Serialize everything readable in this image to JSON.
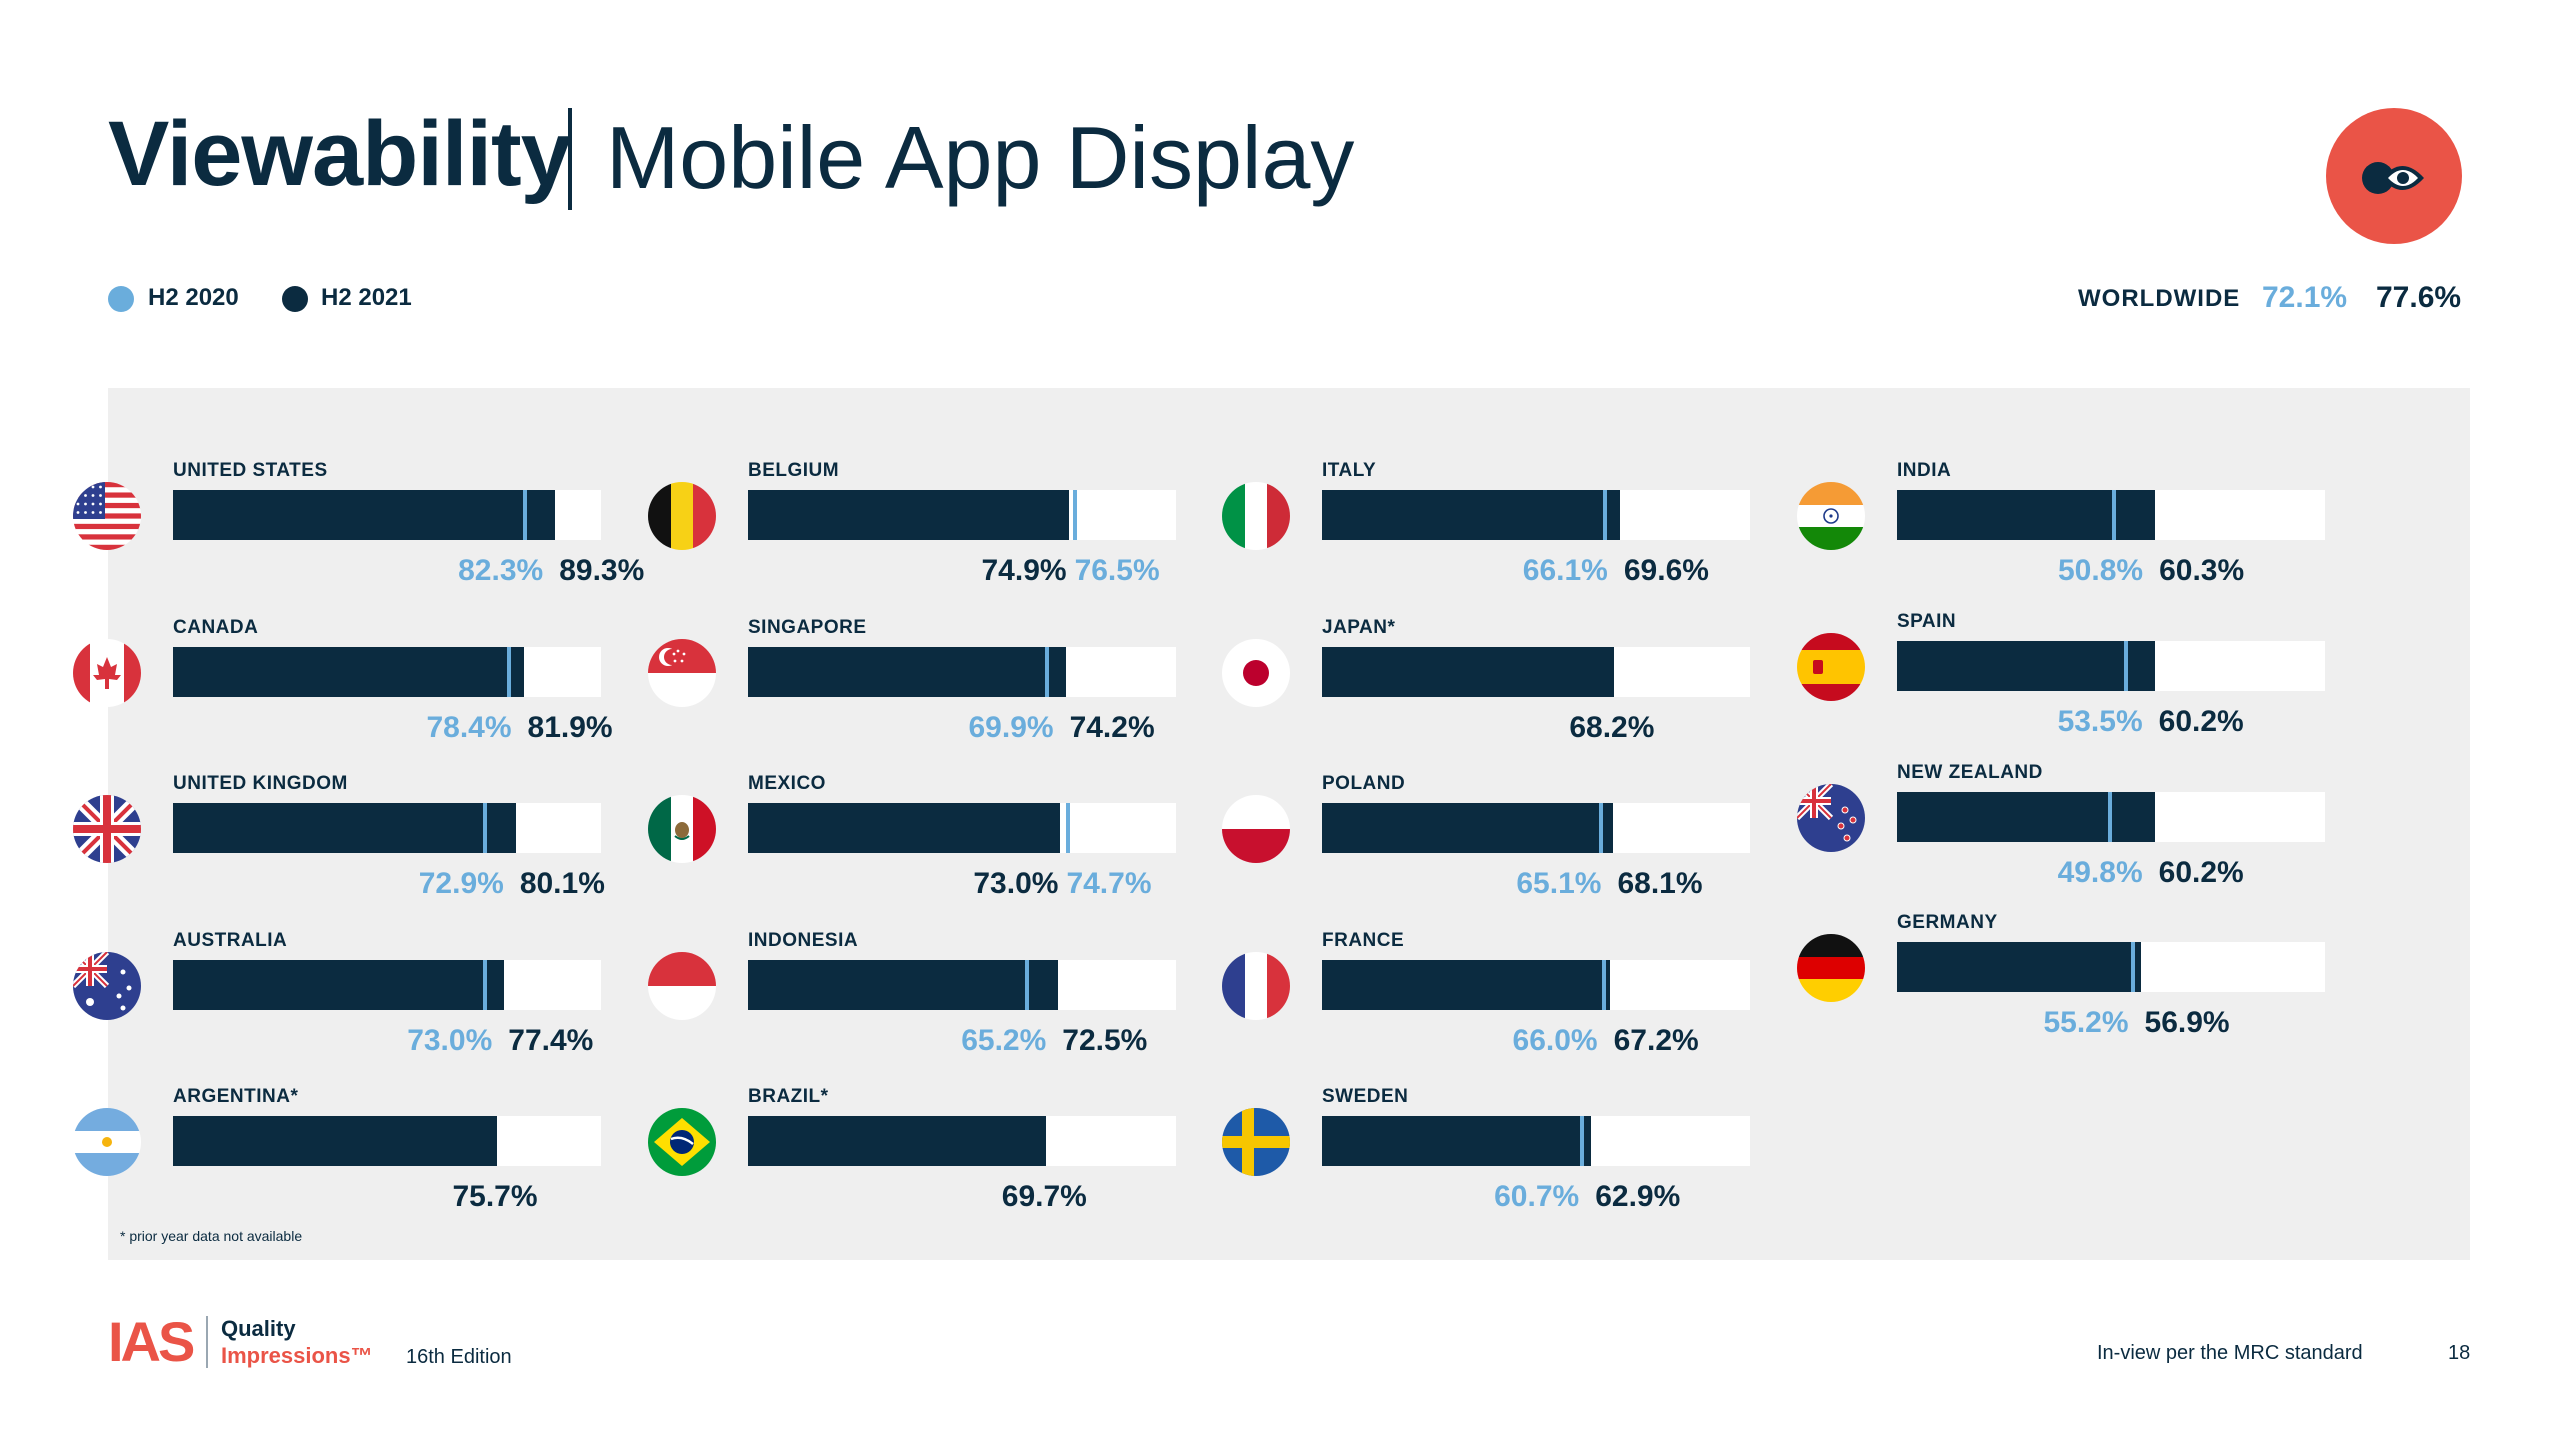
{
  "header": {
    "title": "Viewability",
    "subtitle": "Mobile App Display"
  },
  "legend": [
    {
      "label": "H2 2020",
      "color": "#6aaddc"
    },
    {
      "label": "H2 2021",
      "color": "#0b2b40"
    }
  ],
  "worldwide": {
    "label": "WORLDWIDE",
    "h2_2020": "72.1%",
    "h2_2021": "77.6%"
  },
  "logo_icon": "eye-icon",
  "colors": {
    "h2_2020": "#6aaddc",
    "h2_2021": "#0b2b40",
    "accent": "#ea5447",
    "panel": "#efefef"
  },
  "chart_data": {
    "type": "bar",
    "orientation": "horizontal",
    "xlim": [
      0,
      100
    ],
    "unit": "%",
    "series": [
      {
        "name": "H2 2020"
      },
      {
        "name": "H2 2021"
      }
    ],
    "countries": [
      {
        "name": "UNITED STATES",
        "flag": "us-flag-icon",
        "h2_2020": 82.3,
        "h2_2021": 89.3,
        "label_2020": "82.3%",
        "label_2021": "89.3%"
      },
      {
        "name": "CANADA",
        "flag": "canada-flag-icon",
        "h2_2020": 78.4,
        "h2_2021": 81.9,
        "label_2020": "78.4%",
        "label_2021": "81.9%"
      },
      {
        "name": "UNITED KINGDOM",
        "flag": "uk-flag-icon",
        "h2_2020": 72.9,
        "h2_2021": 80.1,
        "label_2020": "72.9%",
        "label_2021": "80.1%"
      },
      {
        "name": "AUSTRALIA",
        "flag": "australia-flag-icon",
        "h2_2020": 73.0,
        "h2_2021": 77.4,
        "label_2020": "73.0%",
        "label_2021": "77.4%"
      },
      {
        "name": "ARGENTINA*",
        "flag": "argentina-flag-icon",
        "h2_2020": null,
        "h2_2021": 75.7,
        "label_2020": "",
        "label_2021": "75.7%"
      },
      {
        "name": "BELGIUM",
        "flag": "belgium-flag-icon",
        "h2_2020": 76.5,
        "h2_2021": 74.9,
        "label_2020": "76.5%",
        "label_2021": "74.9%"
      },
      {
        "name": "SINGAPORE",
        "flag": "singapore-flag-icon",
        "h2_2020": 69.9,
        "h2_2021": 74.2,
        "label_2020": "69.9%",
        "label_2021": "74.2%"
      },
      {
        "name": "MEXICO",
        "flag": "mexico-flag-icon",
        "h2_2020": 74.7,
        "h2_2021": 73.0,
        "label_2020": "74.7%",
        "label_2021": "73.0%"
      },
      {
        "name": "INDONESIA",
        "flag": "indonesia-flag-icon",
        "h2_2020": 65.2,
        "h2_2021": 72.5,
        "label_2020": "65.2%",
        "label_2021": "72.5%"
      },
      {
        "name": "BRAZIL*",
        "flag": "brazil-flag-icon",
        "h2_2020": null,
        "h2_2021": 69.7,
        "label_2020": "",
        "label_2021": "69.7%"
      },
      {
        "name": "ITALY",
        "flag": "italy-flag-icon",
        "h2_2020": 66.1,
        "h2_2021": 69.6,
        "label_2020": "66.1%",
        "label_2021": "69.6%"
      },
      {
        "name": "JAPAN*",
        "flag": "japan-flag-icon",
        "h2_2020": null,
        "h2_2021": 68.2,
        "label_2020": "",
        "label_2021": "68.2%"
      },
      {
        "name": "POLAND",
        "flag": "poland-flag-icon",
        "h2_2020": 65.1,
        "h2_2021": 68.1,
        "label_2020": "65.1%",
        "label_2021": "68.1%"
      },
      {
        "name": "FRANCE",
        "flag": "france-flag-icon",
        "h2_2020": 66.0,
        "h2_2021": 67.2,
        "label_2020": "66.0%",
        "label_2021": "67.2%"
      },
      {
        "name": "SWEDEN",
        "flag": "sweden-flag-icon",
        "h2_2020": 60.7,
        "h2_2021": 62.9,
        "label_2020": "60.7%",
        "label_2021": "62.9%"
      },
      {
        "name": "INDIA",
        "flag": "india-flag-icon",
        "h2_2020": 50.8,
        "h2_2021": 60.3,
        "label_2020": "50.8%",
        "label_2021": "60.3%"
      },
      {
        "name": "SPAIN",
        "flag": "spain-flag-icon",
        "h2_2020": 53.5,
        "h2_2021": 60.2,
        "label_2020": "53.5%",
        "label_2021": "60.2%"
      },
      {
        "name": "NEW ZEALAND",
        "flag": "new-zealand-flag-icon",
        "h2_2020": 49.8,
        "h2_2021": 60.2,
        "label_2020": "49.8%",
        "label_2021": "60.2%"
      },
      {
        "name": "GERMANY",
        "flag": "germany-flag-icon",
        "h2_2020": 55.2,
        "h2_2021": 56.9,
        "label_2020": "55.2%",
        "label_2021": "56.9%"
      }
    ]
  },
  "footnote": "* prior year data not available",
  "footer": {
    "logo": "IAS",
    "brand_line1": "Quality",
    "brand_line2": "Impressions™",
    "edition": "16th Edition",
    "note": "In-view per the MRC standard",
    "page": "18"
  }
}
